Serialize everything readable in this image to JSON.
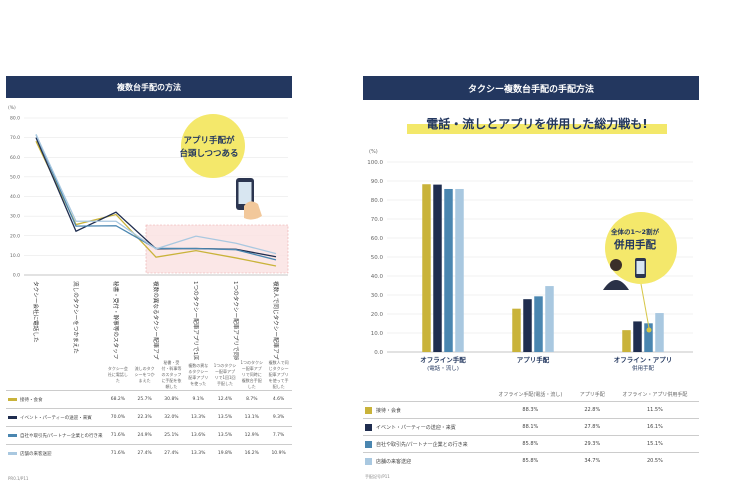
{
  "left": {
    "title": "複数台手配の方法",
    "callout": [
      "アプリ手配が",
      "台頭しつつある"
    ],
    "y_unit": "(%)",
    "source": "PR0.1/P11",
    "table_header": [
      "タクシー会社に電話した",
      "流しのタクシーをつかまえた",
      "秘書・受付・幹事等のスタッフに手配を依頼した",
      "複数の異なるタクシー配車アプリを使った",
      "1つのタクシー配車アプリで1回1回手配した",
      "1つのタクシー配車アプリで同時に複数台手配した",
      "複数人で同じタクシー配車アプリを使って手配した"
    ],
    "chart_data": {
      "type": "line",
      "categories": [
        "タクシー会社に電話した",
        "流しのタクシーをつかまえた",
        "秘書・受付・幹事等のスタッフに手配を依頼した",
        "複数の異なるタクシー配車アプリを使った",
        "1つのタクシー配車アプリで1回1回手配した",
        "1つのタクシー配車アプリで同時に複数台手配した",
        "複数人で同じタクシー配車アプリを使って手配した"
      ],
      "ylim": [
        0,
        80
      ],
      "yticks": [
        "0.0",
        "10.0",
        "20.0",
        "30.0",
        "40.0",
        "50.0",
        "60.0",
        "70.0",
        "80.0"
      ],
      "series": [
        {
          "name": "接待・会食",
          "color": "#c9b33a",
          "values": [
            68.2,
            25.7,
            30.8,
            9.1,
            12.4,
            8.7,
            4.6
          ]
        },
        {
          "name": "イベント・パーティーの送迎・来賓",
          "color": "#1f2d4f",
          "values": [
            70.0,
            22.3,
            32.0,
            13.3,
            13.5,
            13.1,
            9.3
          ]
        },
        {
          "name": "自社や取引先/パートナー企業との行き来",
          "color": "#4a86b0",
          "values": [
            71.6,
            24.9,
            25.1,
            13.6,
            13.5,
            12.9,
            7.7
          ]
        },
        {
          "name": "店舗の来客送迎",
          "color": "#a9c8e0",
          "values": [
            71.6,
            27.4,
            27.4,
            13.3,
            19.8,
            16.2,
            10.9
          ]
        }
      ]
    },
    "table_rows": [
      {
        "label": "接待・会食",
        "color": "#c9b33a",
        "values": [
          "68.2%",
          "25.7%",
          "30.8%",
          "9.1%",
          "12.4%",
          "8.7%",
          "4.6%"
        ]
      },
      {
        "label": "イベント・パーティーの送迎・来賓",
        "color": "#1f2d4f",
        "values": [
          "70.0%",
          "22.3%",
          "32.0%",
          "13.3%",
          "13.5%",
          "13.1%",
          "9.3%"
        ]
      },
      {
        "label": "自社や取引先/パートナー企業との行き来",
        "color": "#4a86b0",
        "values": [
          "71.6%",
          "24.9%",
          "25.1%",
          "13.6%",
          "13.5%",
          "12.9%",
          "7.7%"
        ]
      },
      {
        "label": "店舗の来客送迎",
        "color": "#a9c8e0",
        "values": [
          "71.6%",
          "27.4%",
          "27.4%",
          "13.3%",
          "19.8%",
          "16.2%",
          "10.9%"
        ]
      }
    ]
  },
  "right": {
    "title": "タクシー複数台手配の手配方法",
    "headline": "電話・流しとアプリを併用した総力戦も!",
    "callout_small": "全体の1〜2割が",
    "callout_big": "併用手配",
    "y_unit": "(%)",
    "source": "手配記号/P11",
    "chart_data": {
      "type": "bar",
      "categories": [
        "オフライン手配(電話・流し)",
        "アプリ手配",
        "オフライン・アプリ併用手配"
      ],
      "category_labels": [
        [
          "オフライン手配",
          "(電話・流し)"
        ],
        [
          "アプリ手配"
        ],
        [
          "オフライン・アプリ",
          "併用手配"
        ]
      ],
      "ylim": [
        0,
        100
      ],
      "yticks": [
        "0.0",
        "10.0",
        "20.0",
        "30.0",
        "40.0",
        "50.0",
        "60.0",
        "70.0",
        "80.0",
        "90.0",
        "100.0"
      ],
      "series": [
        {
          "name": "接待・会食",
          "color": "#c9b33a",
          "values": [
            88.3,
            22.8,
            11.5
          ]
        },
        {
          "name": "イベント・パーティーの送迎・来賓",
          "color": "#1f2d4f",
          "values": [
            88.1,
            27.8,
            16.1
          ]
        },
        {
          "name": "自社や取引先/パートナー企業との行き来",
          "color": "#4a86b0",
          "values": [
            85.8,
            29.3,
            15.1
          ]
        },
        {
          "name": "店舗の来客送迎",
          "color": "#a9c8e0",
          "values": [
            85.8,
            34.7,
            20.5
          ]
        }
      ]
    },
    "table_header": [
      "オフライン手配(電話・流し)",
      "アプリ手配",
      "オフライン・アプリ併用手配"
    ],
    "table_rows": [
      {
        "label": "接待・会食",
        "color": "#c9b33a",
        "values": [
          "88.3%",
          "22.8%",
          "11.5%"
        ]
      },
      {
        "label": "イベント・パーティーの送迎・来賓",
        "color": "#1f2d4f",
        "values": [
          "88.1%",
          "27.8%",
          "16.1%"
        ]
      },
      {
        "label": "自社や取引先/パートナー企業との行き来",
        "color": "#4a86b0",
        "values": [
          "85.8%",
          "29.3%",
          "15.1%"
        ]
      },
      {
        "label": "店舗の来客送迎",
        "color": "#a9c8e0",
        "values": [
          "85.8%",
          "34.7%",
          "20.5%"
        ]
      }
    ]
  }
}
